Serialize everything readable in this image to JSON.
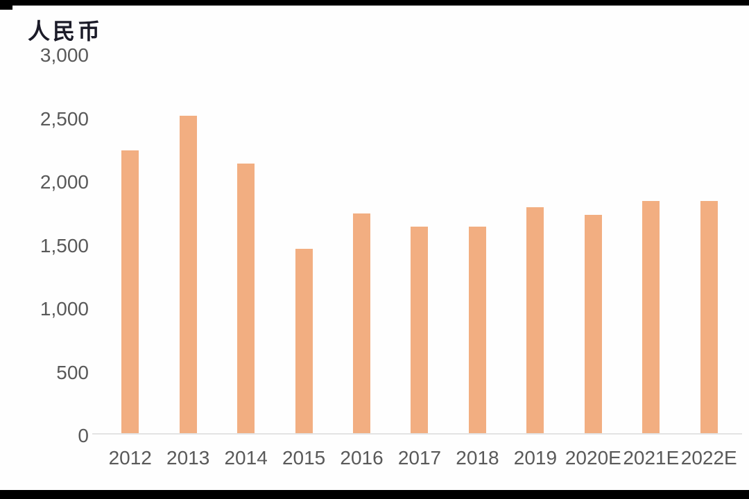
{
  "frame": {
    "background": "#fefefe",
    "border_color": "#000000"
  },
  "chart_data": {
    "type": "bar",
    "title": "人民币",
    "categories": [
      "2012",
      "2013",
      "2014",
      "2015",
      "2016",
      "2017",
      "2018",
      "2019",
      "2020E",
      "2021E",
      "2022E"
    ],
    "values": [
      2250,
      2530,
      2150,
      1470,
      1750,
      1650,
      1650,
      1800,
      1740,
      1850,
      1850
    ],
    "xlabel": "",
    "ylabel": "人民币",
    "ylim": [
      0,
      3000
    ],
    "yticks": [
      0,
      500,
      1000,
      1500,
      2000,
      2500,
      3000
    ],
    "ytick_labels": [
      "0",
      "500",
      "1,000",
      "1,500",
      "2,000",
      "2,500",
      "3,000"
    ],
    "bar_color": "#F2AE81",
    "axis_line_color": "#E3E3E3",
    "tick_label_color": "#595959",
    "title_color": "#1B1B28",
    "grid": false,
    "legend": false
  }
}
